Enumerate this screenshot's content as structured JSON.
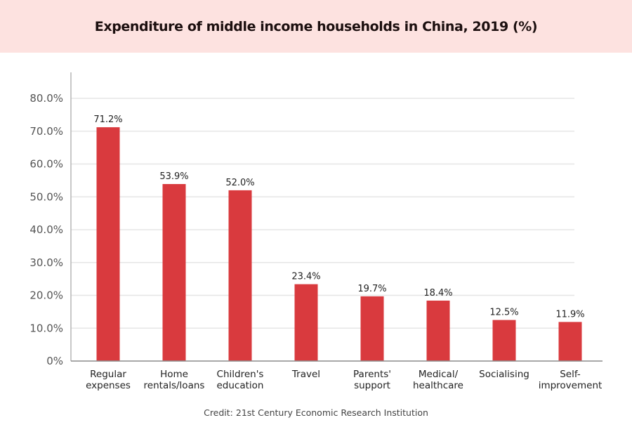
{
  "header": {
    "title": "Expenditure of middle income households in China, 2019 (%)",
    "background": "#fde2e0"
  },
  "credit": "Credit: 21st Century Economic Research Institution",
  "chart_data": {
    "type": "bar",
    "title": "Expenditure of middle income households in China, 2019 (%)",
    "xlabel": "",
    "ylabel": "",
    "categories": [
      [
        "Regular",
        "expenses"
      ],
      [
        "Home",
        "rentals/loans"
      ],
      [
        "Children's",
        "education"
      ],
      [
        "Travel"
      ],
      [
        "Parents'",
        "support"
      ],
      [
        "Medical/",
        "healthcare"
      ],
      [
        "Socialising"
      ],
      [
        "Self-",
        "improvement"
      ]
    ],
    "values": [
      71.2,
      53.9,
      52.0,
      23.4,
      19.7,
      18.4,
      12.5,
      11.9
    ],
    "value_labels": [
      "71.2%",
      "53.9%",
      "52.0%",
      "23.4%",
      "19.7%",
      "18.4%",
      "12.5%",
      "11.9%"
    ],
    "ylim": [
      0,
      80
    ],
    "yticks": [
      0,
      10,
      20,
      30,
      40,
      50,
      60,
      70,
      80
    ],
    "ytick_labels": [
      "0%",
      "10.0%",
      "20.0%",
      "30.0%",
      "40.0%",
      "50.0%",
      "60.0%",
      "70.0%",
      "80.0%"
    ],
    "grid": true,
    "legend": "none",
    "bar_color": "#d93a3e",
    "credit": "Credit: 21st Century Economic Research Institution"
  }
}
